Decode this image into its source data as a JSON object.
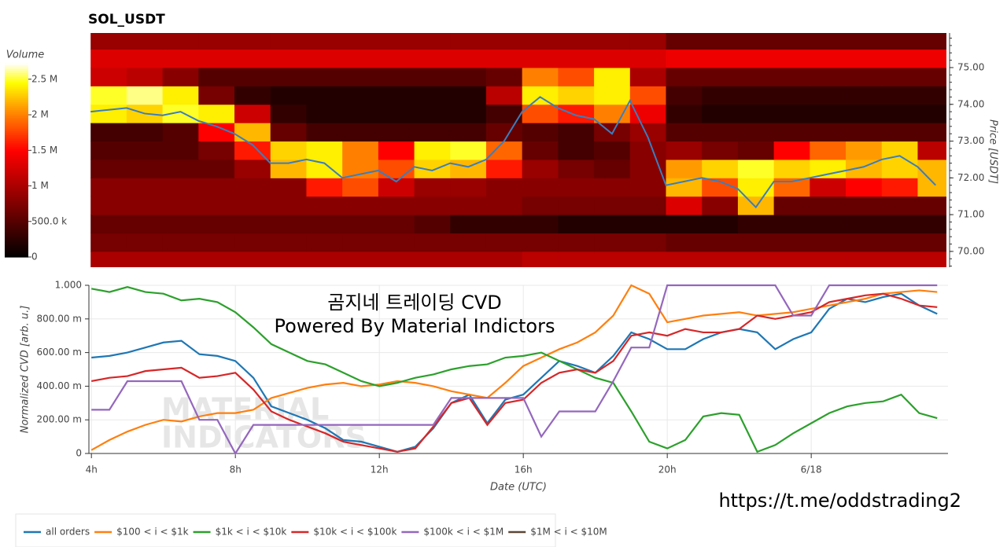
{
  "chart_data": [
    {
      "type": "heatmap",
      "title": "SOL_USDT",
      "x_bins": [
        4,
        5,
        6,
        7,
        8,
        9,
        10,
        11,
        12,
        13,
        14,
        15,
        16,
        17,
        18,
        19,
        20,
        21,
        22,
        23,
        24,
        25,
        26,
        27,
        28
      ],
      "y_bins": [
        69.5,
        70,
        70.5,
        71,
        71.5,
        72,
        72.5,
        73,
        73.5,
        74,
        74.5,
        75,
        75.5,
        76
      ],
      "z": [
        [
          1000000.0,
          1000000.0,
          1000000.0,
          1000000.0,
          1000000.0,
          1000000.0,
          1000000.0,
          1000000.0,
          1000000.0,
          1000000.0,
          1000000.0,
          1000000.0,
          1100000.0,
          1100000.0,
          1100000.0,
          1100000.0,
          1100000.0,
          1100000.0,
          1100000.0,
          1100000.0,
          1100000.0,
          1100000.0,
          1100000.0,
          1100000.0
        ],
        [
          700000.0,
          700000.0,
          700000.0,
          700000.0,
          700000.0,
          700000.0,
          700000.0,
          700000.0,
          700000.0,
          700000.0,
          700000.0,
          700000.0,
          700000.0,
          700000.0,
          700000.0,
          700000.0,
          600000.0,
          600000.0,
          600000.0,
          600000.0,
          600000.0,
          600000.0,
          600000.0,
          600000.0
        ],
        [
          600000.0,
          600000.0,
          600000.0,
          600000.0,
          600000.0,
          600000.0,
          600000.0,
          600000.0,
          600000.0,
          500000.0,
          300000.0,
          300000.0,
          300000.0,
          200000.0,
          200000.0,
          200000.0,
          200000.0,
          200000.0,
          300000.0,
          300000.0,
          300000.0,
          300000.0,
          300000.0,
          300000.0
        ],
        [
          800000.0,
          800000.0,
          800000.0,
          800000.0,
          800000.0,
          800000.0,
          800000.0,
          800000.0,
          800000.0,
          800000.0,
          800000.0,
          800000.0,
          700000.0,
          700000.0,
          700000.0,
          700000.0,
          1300000.0,
          800000.0,
          2200000.0,
          600000.0,
          600000.0,
          600000.0,
          600000.0,
          600000.0
        ],
        [
          800000.0,
          800000.0,
          800000.0,
          800000.0,
          800000.0,
          800000.0,
          1600000.0,
          1800000.0,
          1200000.0,
          900000.0,
          900000.0,
          800000.0,
          800000.0,
          800000.0,
          800000.0,
          800000.0,
          2200000.0,
          1800000.0,
          2400000.0,
          1900000.0,
          1200000.0,
          1500000.0,
          1600000.0,
          2200000.0
        ],
        [
          600000.0,
          600000.0,
          600000.0,
          600000.0,
          900000.0,
          2200000.0,
          2400000.0,
          2000000.0,
          1800000.0,
          2300000.0,
          2200000.0,
          1600000.0,
          900000.0,
          700000.0,
          600000.0,
          800000.0,
          2100000.0,
          2300000.0,
          2500000.0,
          2300000.0,
          2400000.0,
          2200000.0,
          2300000.0,
          2200000.0
        ],
        [
          500000.0,
          500000.0,
          500000.0,
          700000.0,
          1600000.0,
          2300000.0,
          2400000.0,
          2000000.0,
          1500000.0,
          2400000.0,
          2500000.0,
          1900000.0,
          600000.0,
          400000.0,
          500000.0,
          800000.0,
          900000.0,
          700000.0,
          600000.0,
          1500000.0,
          1900000.0,
          2100000.0,
          2300000.0,
          1100000.0
        ],
        [
          400000.0,
          400000.0,
          500000.0,
          1500000.0,
          2200000.0,
          600000.0,
          400000.0,
          400000.0,
          400000.0,
          400000.0,
          400000.0,
          600000.0,
          500000.0,
          400000.0,
          700000.0,
          900000.0,
          500000.0,
          500000.0,
          500000.0,
          500000.0,
          500000.0,
          500000.0,
          500000.0,
          500000.0
        ],
        [
          2400000.0,
          2300000.0,
          2500000.0,
          2400000.0,
          1200000.0,
          300000.0,
          200000.0,
          200000.0,
          200000.0,
          200000.0,
          200000.0,
          400000.0,
          1800000.0,
          1600000.0,
          2000000.0,
          1400000.0,
          300000.0,
          200000.0,
          200000.0,
          200000.0,
          200000.0,
          200000.0,
          200000.0,
          200000.0
        ],
        [
          2500000.0,
          2600000.0,
          2400000.0,
          700000.0,
          300000.0,
          200000.0,
          200000.0,
          200000.0,
          200000.0,
          200000.0,
          200000.0,
          1100000.0,
          2400000.0,
          2300000.0,
          2400000.0,
          1800000.0,
          400000.0,
          300000.0,
          300000.0,
          300000.0,
          300000.0,
          300000.0,
          300000.0,
          300000.0
        ],
        [
          1200000.0,
          1100000.0,
          800000.0,
          500000.0,
          500000.0,
          500000.0,
          500000.0,
          500000.0,
          500000.0,
          500000.0,
          500000.0,
          600000.0,
          2000000.0,
          1800000.0,
          2400000.0,
          1000000.0,
          600000.0,
          600000.0,
          600000.0,
          600000.0,
          600000.0,
          600000.0,
          600000.0,
          600000.0
        ],
        [
          1300000.0,
          1300000.0,
          1300000.0,
          1300000.0,
          1300000.0,
          1300000.0,
          1300000.0,
          1300000.0,
          1300000.0,
          1300000.0,
          1300000.0,
          1300000.0,
          1300000.0,
          1300000.0,
          1300000.0,
          1300000.0,
          1400000.0,
          1400000.0,
          1400000.0,
          1400000.0,
          1400000.0,
          1400000.0,
          1400000.0,
          1400000.0
        ],
        [
          900000.0,
          900000.0,
          900000.0,
          900000.0,
          900000.0,
          900000.0,
          900000.0,
          900000.0,
          900000.0,
          900000.0,
          900000.0,
          900000.0,
          900000.0,
          900000.0,
          900000.0,
          900000.0,
          600000.0,
          600000.0,
          600000.0,
          600000.0,
          600000.0,
          600000.0,
          600000.0,
          600000.0
        ]
      ],
      "xlim": [
        3.93,
        27.8
      ],
      "ylim": [
        69.57,
        75.94
      ],
      "yticks": [
        {
          "value": 70,
          "label": "70.00"
        },
        {
          "value": 71,
          "label": "71.00"
        },
        {
          "value": 72,
          "label": "72.00"
        },
        {
          "value": 73,
          "label": "73.00"
        },
        {
          "value": 74,
          "label": "74.00"
        },
        {
          "value": 75,
          "label": "75.00"
        }
      ],
      "y_label": "Price [USDT]",
      "colorbar": {
        "title": "Volume",
        "zlim": [
          0,
          2730000.0
        ],
        "ticks": [
          0,
          {
            "value": 500000.0,
            "label": "500.0 k"
          },
          {
            "value": 1000000.0,
            "label": "1 M"
          },
          {
            "value": 1500000.0,
            "label": "1.5 M"
          },
          {
            "value": 2000000.0,
            "label": "2 M"
          },
          {
            "value": 2500000.0,
            "label": "2.5 M"
          }
        ]
      },
      "line": {
        "color": "#3a7ebf",
        "x": [
          4,
          4.5,
          5,
          5.5,
          6,
          6.5,
          7,
          7.5,
          8,
          8.5,
          9,
          9.5,
          10,
          10.5,
          11,
          11.5,
          12,
          12.5,
          13,
          13.5,
          14,
          14.5,
          15,
          15.5,
          16,
          16.5,
          17,
          17.5,
          18,
          18.5,
          19,
          19.5,
          20,
          20.5,
          21,
          21.5,
          22,
          22.5,
          23,
          23.5,
          24,
          24.5,
          25,
          25.5,
          26,
          26.5,
          27,
          27.5
        ],
        "values": [
          73.8,
          73.85,
          73.9,
          73.75,
          73.7,
          73.8,
          73.55,
          73.4,
          73.2,
          72.9,
          72.4,
          72.4,
          72.5,
          72.4,
          72.0,
          72.1,
          72.2,
          71.9,
          72.3,
          72.2,
          72.4,
          72.3,
          72.5,
          73.0,
          73.8,
          74.2,
          73.9,
          73.7,
          73.6,
          73.2,
          74.1,
          73.1,
          71.8,
          71.9,
          72.0,
          71.9,
          71.7,
          71.2,
          71.9,
          71.9,
          72.0,
          72.1,
          72.2,
          72.3,
          72.5,
          72.6,
          72.3,
          71.8
        ]
      }
    },
    {
      "type": "line",
      "x": [
        4,
        4.5,
        5,
        5.5,
        6,
        6.5,
        7,
        7.5,
        8,
        8.5,
        9,
        9.5,
        10,
        10.5,
        11,
        11.5,
        12,
        12.5,
        13,
        13.5,
        14,
        14.5,
        15,
        15.5,
        16,
        16.5,
        17,
        17.5,
        18,
        18.5,
        19,
        19.5,
        20,
        20.5,
        21,
        21.5,
        22,
        22.5,
        23,
        23.5,
        24,
        24.5,
        25,
        25.5,
        26,
        26.5,
        27,
        27.5
      ],
      "series": [
        {
          "name": "all orders",
          "color": "#1f77b4",
          "values": [
            0.57,
            0.58,
            0.6,
            0.63,
            0.66,
            0.67,
            0.59,
            0.58,
            0.55,
            0.45,
            0.28,
            0.24,
            0.2,
            0.15,
            0.08,
            0.07,
            0.04,
            0.01,
            0.04,
            0.15,
            0.3,
            0.35,
            0.18,
            0.32,
            0.35,
            0.45,
            0.55,
            0.52,
            0.48,
            0.58,
            0.72,
            0.68,
            0.62,
            0.62,
            0.68,
            0.72,
            0.74,
            0.72,
            0.62,
            0.68,
            0.72,
            0.86,
            0.92,
            0.9,
            0.93,
            0.95,
            0.88,
            0.83
          ]
        },
        {
          "name": "$100 < i < $1k",
          "color": "#ff7f0e",
          "values": [
            0.02,
            0.08,
            0.13,
            0.17,
            0.2,
            0.19,
            0.22,
            0.24,
            0.24,
            0.26,
            0.33,
            0.36,
            0.39,
            0.41,
            0.42,
            0.4,
            0.41,
            0.43,
            0.42,
            0.4,
            0.37,
            0.35,
            0.33,
            0.42,
            0.52,
            0.57,
            0.62,
            0.66,
            0.72,
            0.82,
            1.0,
            0.95,
            0.78,
            0.8,
            0.82,
            0.83,
            0.84,
            0.82,
            0.83,
            0.84,
            0.86,
            0.88,
            0.9,
            0.92,
            0.95,
            0.96,
            0.97,
            0.96
          ]
        },
        {
          "name": "$1k < i < $10k",
          "color": "#2ca02c",
          "values": [
            0.98,
            0.96,
            0.99,
            0.96,
            0.95,
            0.91,
            0.92,
            0.9,
            0.84,
            0.75,
            0.65,
            0.6,
            0.55,
            0.53,
            0.48,
            0.43,
            0.4,
            0.42,
            0.45,
            0.47,
            0.5,
            0.52,
            0.53,
            0.57,
            0.58,
            0.6,
            0.55,
            0.5,
            0.45,
            0.42,
            0.25,
            0.07,
            0.03,
            0.08,
            0.22,
            0.24,
            0.23,
            0.01,
            0.05,
            0.12,
            0.18,
            0.24,
            0.28,
            0.3,
            0.31,
            0.35,
            0.24,
            0.21
          ]
        },
        {
          "name": "$10k < i < $100k",
          "color": "#d62728",
          "values": [
            0.43,
            0.45,
            0.46,
            0.49,
            0.5,
            0.51,
            0.45,
            0.46,
            0.48,
            0.38,
            0.25,
            0.2,
            0.16,
            0.12,
            0.07,
            0.05,
            0.03,
            0.01,
            0.03,
            0.16,
            0.3,
            0.33,
            0.17,
            0.3,
            0.32,
            0.42,
            0.48,
            0.5,
            0.48,
            0.55,
            0.7,
            0.72,
            0.7,
            0.74,
            0.72,
            0.72,
            0.74,
            0.82,
            0.8,
            0.82,
            0.84,
            0.9,
            0.92,
            0.94,
            0.95,
            0.92,
            0.88,
            0.87
          ]
        },
        {
          "name": "$100k < i < $1M",
          "color": "#9467bd",
          "values": [
            0.26,
            0.26,
            0.43,
            0.43,
            0.43,
            0.43,
            0.2,
            0.2,
            0.0,
            0.17,
            0.17,
            0.17,
            0.17,
            0.17,
            0.17,
            0.17,
            0.17,
            0.17,
            0.17,
            0.17,
            0.33,
            0.33,
            0.33,
            0.33,
            0.33,
            0.1,
            0.25,
            0.25,
            0.25,
            0.43,
            0.63,
            0.63,
            1.0,
            1.0,
            1.0,
            1.0,
            1.0,
            1.0,
            1.0,
            0.82,
            0.82,
            1.0,
            1.0,
            1.0,
            1.0,
            1.0,
            1.0,
            1.0
          ]
        },
        {
          "name": "$1M < i < $10M",
          "color": "#5a4636",
          "values": [
            null,
            null,
            null,
            null,
            null,
            null,
            null,
            null,
            null,
            null,
            null,
            null,
            null,
            null,
            null,
            null,
            null,
            null,
            null,
            null,
            null,
            null,
            null,
            null,
            null,
            null,
            null,
            null,
            null,
            null,
            null,
            null,
            null,
            null,
            null,
            null,
            null,
            null,
            null,
            null,
            null,
            null,
            null,
            null,
            null,
            null,
            null,
            null
          ]
        }
      ],
      "xlim": [
        3.93,
        27.8
      ],
      "xticks": [
        {
          "value": 4,
          "label": "4h"
        },
        {
          "value": 8,
          "label": "8h"
        },
        {
          "value": 12,
          "label": "12h"
        },
        {
          "value": 16,
          "label": "16h"
        },
        {
          "value": 20,
          "label": "20h"
        },
        {
          "value": 24,
          "label": "6/18"
        }
      ],
      "ylim": [
        0,
        1
      ],
      "yticks": [
        0,
        {
          "value": 0.2,
          "label": "200.00 m"
        },
        {
          "value": 0.4,
          "label": "400.00 m"
        },
        {
          "value": 0.6,
          "label": "600.00 m"
        },
        {
          "value": 0.8,
          "label": "800.00 m"
        },
        {
          "value": 1,
          "label": "1.000"
        }
      ],
      "x_label": "Date (UTC)",
      "y_label": "Normalized CVD [arb. u.]",
      "grid": true,
      "legend": "bottom-left",
      "annotations": [
        "곰지네 트레이딩 CVD",
        "Powered By Material Indictors"
      ],
      "watermark": [
        "MATERIAL",
        "INDICATORS"
      ]
    }
  ],
  "footer_link": "https://t.me/oddstrading2"
}
